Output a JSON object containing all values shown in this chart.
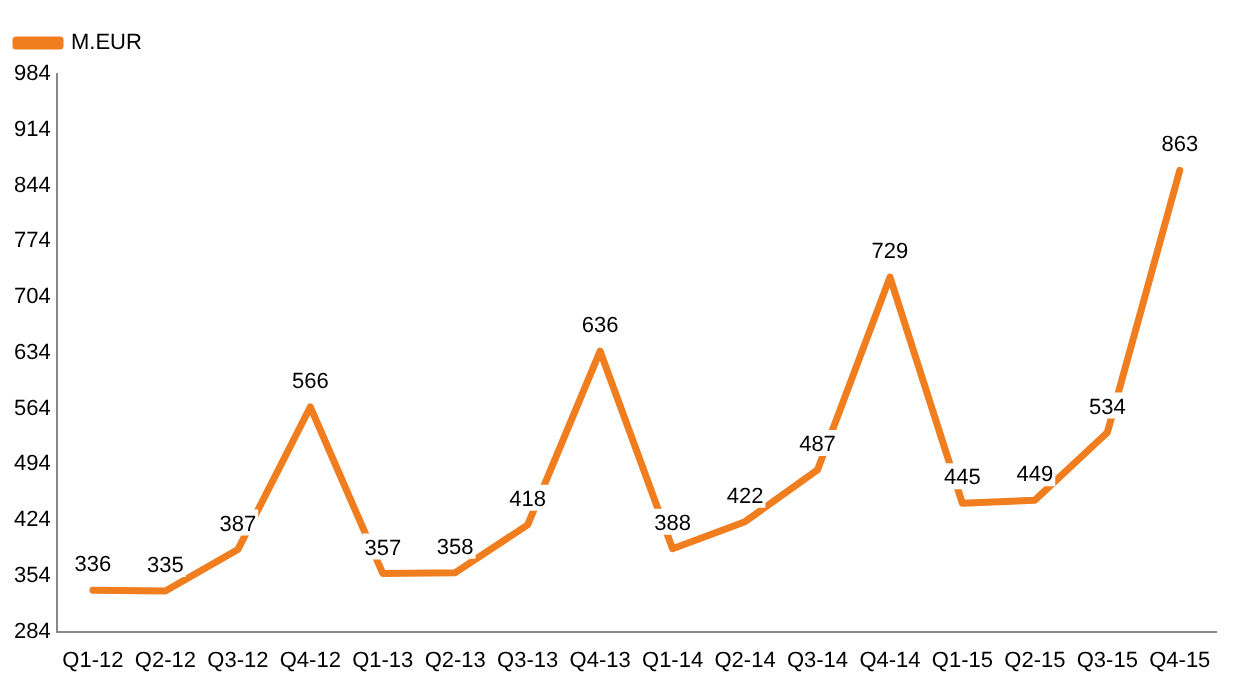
{
  "chart_data": {
    "type": "line",
    "categories": [
      "Q1-12",
      "Q2-12",
      "Q3-12",
      "Q4-12",
      "Q1-13",
      "Q2-13",
      "Q3-13",
      "Q4-13",
      "Q1-14",
      "Q2-14",
      "Q3-14",
      "Q4-14",
      "Q1-15",
      "Q2-15",
      "Q3-15",
      "Q4-15"
    ],
    "series": [
      {
        "name": "M.EUR",
        "color": "#f07d1e",
        "values": [
          336,
          335,
          387,
          566,
          357,
          358,
          418,
          636,
          388,
          422,
          487,
          729,
          445,
          449,
          534,
          863
        ]
      }
    ],
    "ylim": [
      284,
      984
    ],
    "yticks": [
      284,
      354,
      424,
      494,
      564,
      634,
      704,
      774,
      844,
      914,
      984
    ],
    "grid": false,
    "legend": "top left",
    "marker": "none",
    "line_style": "solid",
    "data_labels": true
  }
}
